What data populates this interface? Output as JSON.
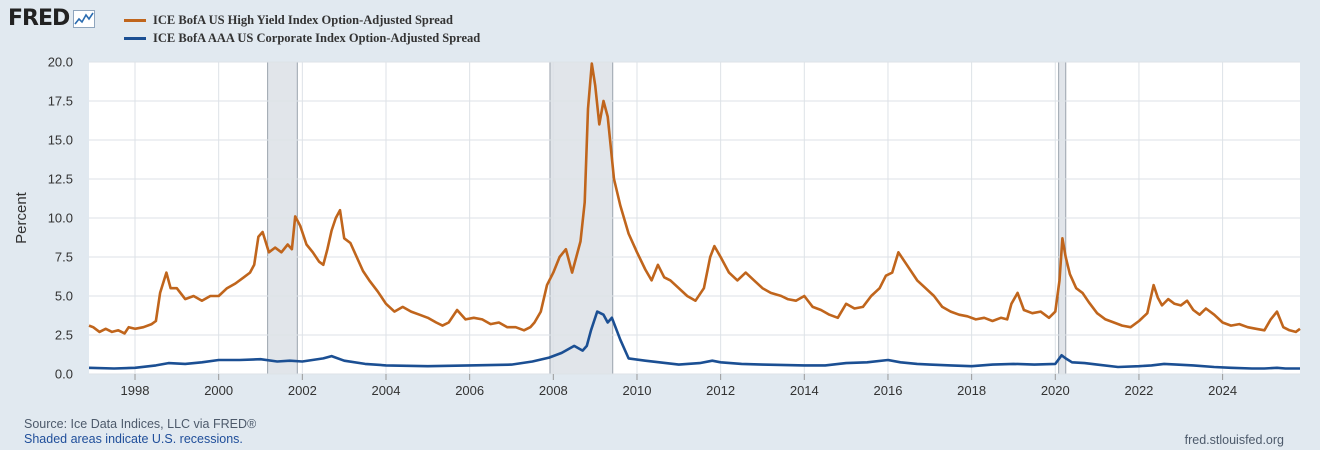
{
  "brand": {
    "logo_text": "FRED",
    "logo_icon": "fred-graph-icon"
  },
  "chart_data": {
    "type": "line",
    "title": "",
    "ylabel": "Percent",
    "xlabel": "",
    "ylim": [
      0,
      20
    ],
    "yticks": [
      0.0,
      2.5,
      5.0,
      7.5,
      10.0,
      12.5,
      15.0,
      17.5,
      20.0
    ],
    "ytick_labels": [
      "0.0",
      "2.5",
      "5.0",
      "7.5",
      "10.0",
      "12.5",
      "15.0",
      "17.5",
      "20.0"
    ],
    "xlim": [
      1996.9,
      2025.85
    ],
    "xticks": [
      1998,
      2000,
      2002,
      2004,
      2006,
      2008,
      2010,
      2012,
      2014,
      2016,
      2018,
      2020,
      2022,
      2024
    ],
    "xtick_labels": [
      "1998",
      "2000",
      "2002",
      "2004",
      "2006",
      "2008",
      "2010",
      "2012",
      "2014",
      "2016",
      "2018",
      "2020",
      "2022",
      "2024"
    ],
    "grid": true,
    "legend_position": "top-left",
    "recessions": [
      [
        2001.17,
        2001.88
      ],
      [
        2007.92,
        2009.42
      ],
      [
        2020.08,
        2020.25
      ]
    ],
    "series": [
      {
        "name": "ICE BofA US High Yield Index Option-Adjusted Spread",
        "color": "#c0651c",
        "x": [
          1996.9,
          1997.0,
          1997.15,
          1997.3,
          1997.45,
          1997.6,
          1997.75,
          1997.85,
          1998.0,
          1998.2,
          1998.4,
          1998.5,
          1998.6,
          1998.75,
          1998.85,
          1999.0,
          1999.2,
          1999.4,
          1999.6,
          1999.8,
          2000.0,
          2000.2,
          2000.4,
          2000.6,
          2000.75,
          2000.85,
          2000.95,
          2001.05,
          2001.2,
          2001.35,
          2001.5,
          2001.65,
          2001.75,
          2001.83,
          2001.95,
          2002.1,
          2002.25,
          2002.4,
          2002.5,
          2002.6,
          2002.7,
          2002.8,
          2002.9,
          2003.0,
          2003.15,
          2003.3,
          2003.45,
          2003.6,
          2003.8,
          2004.0,
          2004.2,
          2004.4,
          2004.6,
          2004.8,
          2005.0,
          2005.2,
          2005.35,
          2005.5,
          2005.7,
          2005.9,
          2006.1,
          2006.3,
          2006.5,
          2006.7,
          2006.9,
          2007.1,
          2007.3,
          2007.45,
          2007.55,
          2007.7,
          2007.85,
          2008.0,
          2008.15,
          2008.3,
          2008.45,
          2008.55,
          2008.65,
          2008.75,
          2008.83,
          2008.92,
          2009.0,
          2009.1,
          2009.2,
          2009.3,
          2009.45,
          2009.6,
          2009.8,
          2010.0,
          2010.2,
          2010.35,
          2010.5,
          2010.65,
          2010.8,
          2011.0,
          2011.2,
          2011.4,
          2011.6,
          2011.75,
          2011.85,
          2012.0,
          2012.2,
          2012.4,
          2012.6,
          2012.8,
          2013.0,
          2013.2,
          2013.45,
          2013.6,
          2013.8,
          2014.0,
          2014.2,
          2014.4,
          2014.6,
          2014.8,
          2015.0,
          2015.2,
          2015.4,
          2015.6,
          2015.8,
          2015.95,
          2016.1,
          2016.25,
          2016.45,
          2016.7,
          2016.9,
          2017.1,
          2017.3,
          2017.5,
          2017.7,
          2017.9,
          2018.1,
          2018.3,
          2018.5,
          2018.7,
          2018.85,
          2018.95,
          2019.1,
          2019.25,
          2019.45,
          2019.65,
          2019.85,
          2020.0,
          2020.1,
          2020.17,
          2020.25,
          2020.35,
          2020.5,
          2020.65,
          2020.8,
          2021.0,
          2021.2,
          2021.4,
          2021.6,
          2021.8,
          2022.0,
          2022.2,
          2022.35,
          2022.45,
          2022.55,
          2022.7,
          2022.85,
          2023.0,
          2023.15,
          2023.3,
          2023.45,
          2023.6,
          2023.8,
          2024.0,
          2024.2,
          2024.4,
          2024.6,
          2024.8,
          2025.0,
          2025.15,
          2025.3,
          2025.45,
          2025.6,
          2025.75,
          2025.85
        ],
        "values": [
          3.1,
          3.0,
          2.7,
          2.9,
          2.7,
          2.8,
          2.6,
          3.0,
          2.9,
          3.0,
          3.2,
          3.4,
          5.2,
          6.5,
          5.5,
          5.5,
          4.8,
          5.0,
          4.7,
          5.0,
          5.0,
          5.5,
          5.8,
          6.2,
          6.5,
          7.0,
          8.8,
          9.1,
          7.8,
          8.1,
          7.8,
          8.3,
          8.0,
          10.1,
          9.5,
          8.3,
          7.8,
          7.2,
          7.0,
          8.0,
          9.2,
          10.0,
          10.5,
          8.7,
          8.4,
          7.5,
          6.6,
          6.0,
          5.3,
          4.5,
          4.0,
          4.3,
          4.0,
          3.8,
          3.6,
          3.3,
          3.1,
          3.3,
          4.1,
          3.5,
          3.6,
          3.5,
          3.2,
          3.3,
          3.0,
          3.0,
          2.8,
          3.0,
          3.3,
          4.0,
          5.7,
          6.5,
          7.5,
          8.0,
          6.5,
          7.5,
          8.5,
          11.0,
          17.0,
          19.9,
          18.5,
          16.0,
          17.5,
          16.5,
          12.5,
          10.8,
          9.0,
          7.8,
          6.7,
          6.0,
          7.0,
          6.2,
          6.0,
          5.5,
          5.0,
          4.7,
          5.5,
          7.5,
          8.2,
          7.5,
          6.5,
          6.0,
          6.5,
          6.0,
          5.5,
          5.2,
          5.0,
          4.8,
          4.7,
          5.0,
          4.3,
          4.1,
          3.8,
          3.6,
          4.5,
          4.2,
          4.3,
          5.0,
          5.5,
          6.3,
          6.5,
          7.8,
          7.0,
          6.0,
          5.5,
          5.0,
          4.3,
          4.0,
          3.8,
          3.7,
          3.5,
          3.6,
          3.4,
          3.6,
          3.5,
          4.5,
          5.2,
          4.1,
          3.9,
          4.0,
          3.6,
          4.0,
          6.0,
          8.7,
          7.5,
          6.4,
          5.5,
          5.2,
          4.6,
          3.9,
          3.5,
          3.3,
          3.1,
          3.0,
          3.4,
          3.9,
          5.7,
          4.9,
          4.4,
          4.8,
          4.5,
          4.4,
          4.7,
          4.1,
          3.8,
          4.2,
          3.8,
          3.3,
          3.1,
          3.2,
          3.0,
          2.9,
          2.8,
          3.5,
          4.0,
          3.0,
          2.8,
          2.7,
          2.9
        ]
      },
      {
        "name": "ICE BofA AAA US Corporate Index Option-Adjusted Spread",
        "color": "#1b4f93",
        "x": [
          1996.9,
          1997.5,
          1998.0,
          1998.5,
          1998.8,
          1999.2,
          1999.6,
          2000.0,
          2000.5,
          2001.0,
          2001.4,
          2001.7,
          2002.0,
          2002.5,
          2002.7,
          2003.0,
          2003.5,
          2004.0,
          2005.0,
          2006.0,
          2007.0,
          2007.5,
          2007.9,
          2008.2,
          2008.5,
          2008.7,
          2008.8,
          2008.9,
          2009.05,
          2009.2,
          2009.3,
          2009.4,
          2009.6,
          2009.8,
          2010.2,
          2011.0,
          2011.5,
          2011.8,
          2012.0,
          2012.5,
          2013.0,
          2014.0,
          2014.5,
          2015.0,
          2015.5,
          2016.0,
          2016.3,
          2016.7,
          2017.0,
          2017.5,
          2018.0,
          2018.5,
          2019.0,
          2019.5,
          2020.0,
          2020.15,
          2020.25,
          2020.4,
          2020.7,
          2021.0,
          2021.5,
          2022.0,
          2022.3,
          2022.6,
          2022.9,
          2023.3,
          2023.8,
          2024.2,
          2024.7,
          2025.0,
          2025.3,
          2025.5,
          2025.85
        ],
        "values": [
          0.4,
          0.35,
          0.4,
          0.55,
          0.7,
          0.65,
          0.75,
          0.9,
          0.9,
          0.95,
          0.8,
          0.85,
          0.8,
          1.0,
          1.15,
          0.85,
          0.65,
          0.55,
          0.5,
          0.55,
          0.6,
          0.8,
          1.05,
          1.35,
          1.8,
          1.5,
          1.8,
          2.8,
          4.0,
          3.8,
          3.3,
          3.6,
          2.2,
          1.0,
          0.85,
          0.6,
          0.7,
          0.85,
          0.75,
          0.65,
          0.6,
          0.55,
          0.55,
          0.7,
          0.75,
          0.9,
          0.75,
          0.65,
          0.6,
          0.55,
          0.5,
          0.6,
          0.65,
          0.6,
          0.65,
          1.2,
          1.0,
          0.75,
          0.7,
          0.6,
          0.45,
          0.5,
          0.55,
          0.65,
          0.6,
          0.55,
          0.45,
          0.4,
          0.35,
          0.35,
          0.4,
          0.35,
          0.35
        ]
      }
    ]
  },
  "footer": {
    "source": "Source: Ice Data Indices, LLC via FRED®",
    "note": "Shaded areas indicate U.S. recessions.",
    "site": "fred.stlouisfed.org"
  }
}
